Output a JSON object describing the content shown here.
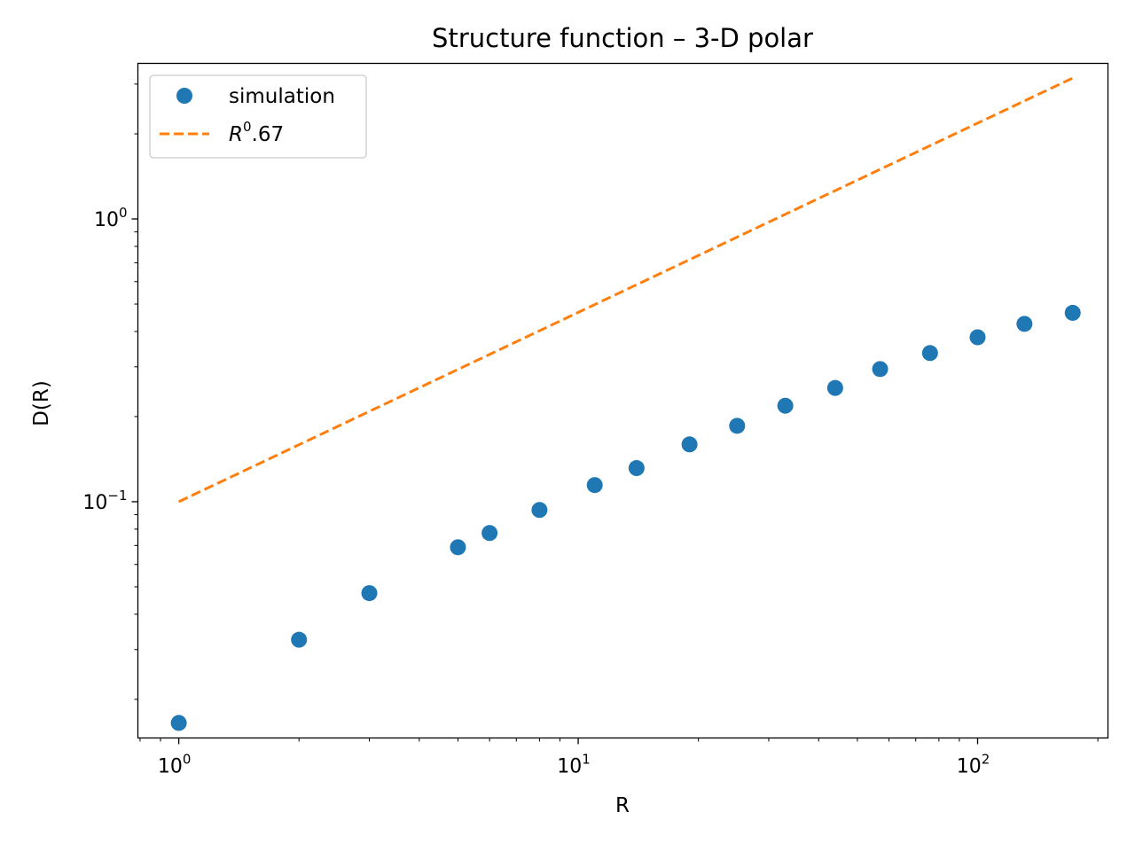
{
  "chart_data": {
    "type": "scatter",
    "title": "Structure function – 3-D polar",
    "xlabel": "R",
    "ylabel": "D(R)",
    "xscale": "log",
    "yscale": "log",
    "xlim": [
      0.79,
      212
    ],
    "ylim": [
      0.0146,
      3.55
    ],
    "grid": false,
    "legend_position": "top-left",
    "x_ticks": [
      {
        "base": "10",
        "exp": "0",
        "value": 1
      },
      {
        "base": "10",
        "exp": "1",
        "value": 10
      },
      {
        "base": "10",
        "exp": "2",
        "value": 100
      }
    ],
    "y_ticks": [
      {
        "base": "10",
        "exp": "−1",
        "value": 0.1
      },
      {
        "base": "10",
        "exp": "0",
        "value": 1
      }
    ],
    "series": [
      {
        "name": "simulation",
        "style": "markers",
        "color": "#1f77b4",
        "x": [
          1,
          2,
          3,
          5,
          6,
          8,
          11,
          14,
          19,
          25,
          33,
          44,
          57,
          76,
          100,
          131,
          173
        ],
        "y": [
          0.0165,
          0.0325,
          0.0475,
          0.069,
          0.0775,
          0.0935,
          0.1145,
          0.1315,
          0.1595,
          0.1855,
          0.2185,
          0.2525,
          0.2945,
          0.3355,
          0.3815,
          0.4255,
          0.4655
        ]
      },
      {
        "name_base": "R",
        "name_exp": "0",
        "name_tail": ".67",
        "style": "dashed",
        "color": "#ff7f0e",
        "x": [
          1,
          173
        ],
        "y": [
          0.1,
          3.15
        ]
      }
    ]
  }
}
